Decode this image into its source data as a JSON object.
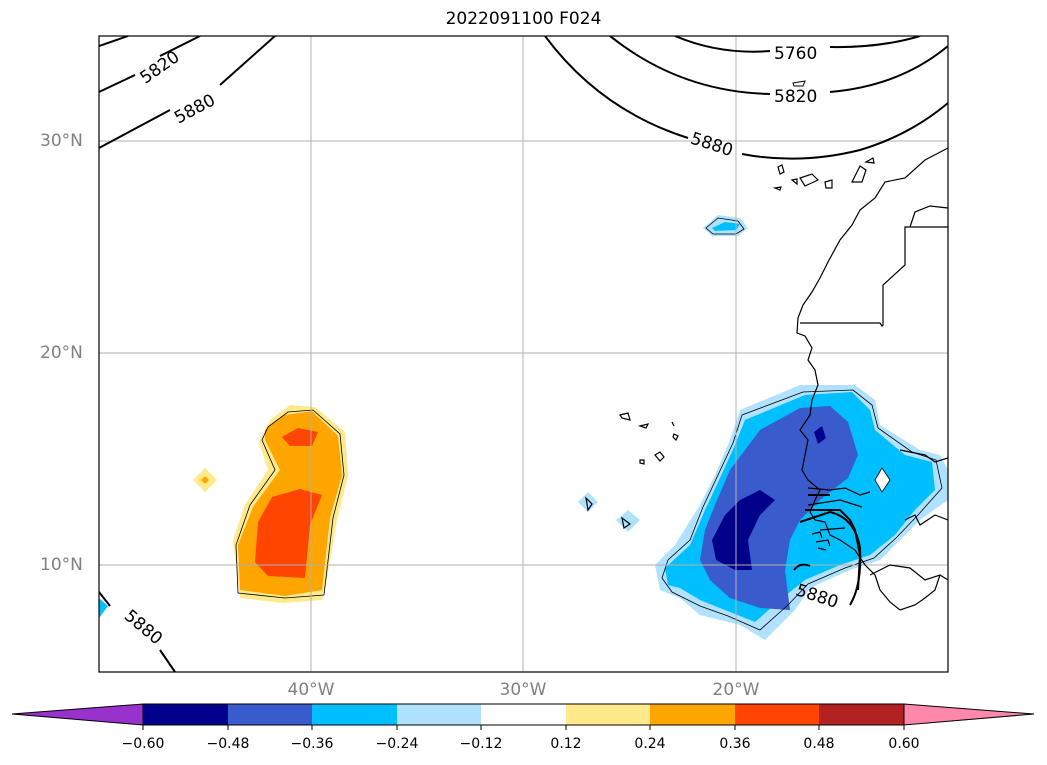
{
  "title": "2022091100 F024",
  "map": {
    "lat_labels": [
      "30°N",
      "20°N",
      "10°N"
    ],
    "lon_labels": [
      "40°W",
      "30°W",
      "20°W"
    ],
    "grid": true,
    "contour_labels": [
      "5820",
      "5880",
      "5760",
      "5820",
      "5880",
      "5880",
      "5880"
    ]
  },
  "colorbar": {
    "ticks": [
      "−0.60",
      "−0.48",
      "−0.36",
      "−0.24",
      "−0.12",
      "0.12",
      "0.24",
      "0.36",
      "0.48",
      "0.60"
    ],
    "colors": [
      "#9932cc",
      "#00008b",
      "#3a5bcc",
      "#00bfff",
      "#b0e2ff",
      "#ffffff",
      "#ffe98a",
      "#ffa500",
      "#ff4500",
      "#b22222",
      "#ff88aa"
    ],
    "extend": "both"
  }
}
